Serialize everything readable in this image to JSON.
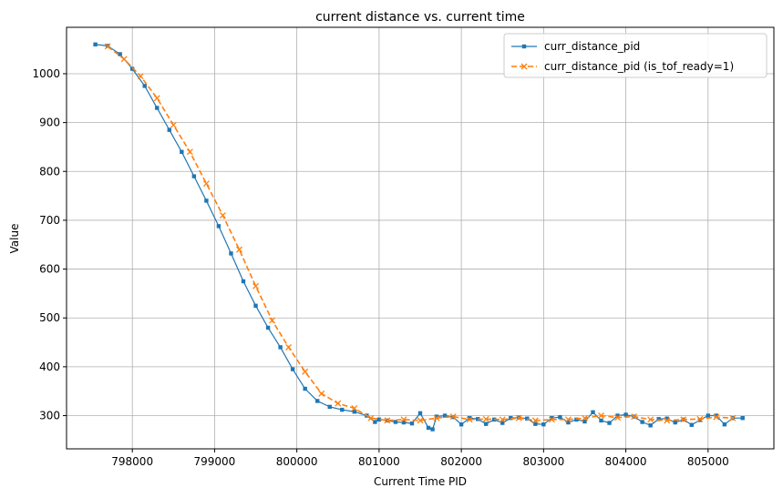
{
  "chart_data": {
    "type": "line",
    "title": "current distance vs. current time",
    "xlabel": "Current Time PID",
    "ylabel": "Value",
    "xlim": [
      797200,
      805800
    ],
    "ylim": [
      232,
      1095
    ],
    "xticks": [
      798000,
      799000,
      800000,
      801000,
      802000,
      803000,
      804000,
      805000
    ],
    "yticks": [
      300,
      400,
      500,
      600,
      700,
      800,
      900,
      1000
    ],
    "grid": true,
    "legend": "top-right",
    "series": [
      {
        "name": "curr_distance_pid",
        "color": "#1f77b4",
        "marker": "square",
        "linestyle": "solid",
        "x": [
          797550,
          797700,
          797850,
          798000,
          798150,
          798300,
          798450,
          798600,
          798750,
          798900,
          799050,
          799200,
          799350,
          799500,
          799650,
          799800,
          799950,
          800100,
          800250,
          800400,
          800550,
          800700,
          800850,
          800950,
          801000,
          801100,
          801200,
          801300,
          801400,
          801500,
          801600,
          801650,
          801700,
          801800,
          801900,
          802000,
          802100,
          802200,
          802300,
          802400,
          802500,
          802600,
          802700,
          802800,
          802900,
          803000,
          803100,
          803200,
          803300,
          803400,
          803500,
          803600,
          803700,
          803800,
          803900,
          804000,
          804100,
          804200,
          804300,
          804400,
          804500,
          804600,
          804700,
          804800,
          804900,
          805000,
          805100,
          805200,
          805300,
          805420
        ],
        "y": [
          1060,
          1057,
          1040,
          1010,
          975,
          930,
          885,
          840,
          790,
          740,
          688,
          632,
          575,
          525,
          480,
          440,
          395,
          355,
          330,
          318,
          312,
          308,
          300,
          287,
          292,
          290,
          287,
          286,
          284,
          305,
          275,
          272,
          298,
          300,
          297,
          282,
          295,
          293,
          283,
          292,
          285,
          295,
          296,
          294,
          283,
          282,
          295,
          297,
          286,
          292,
          288,
          307,
          290,
          285,
          300,
          302,
          298,
          287,
          280,
          293,
          294,
          286,
          292,
          281,
          291,
          300,
          300,
          282,
          295,
          295
        ]
      },
      {
        "name": "curr_distance_pid (is_tof_ready=1)",
        "color": "#ff7f0e",
        "marker": "x",
        "linestyle": "dashed",
        "x": [
          797700,
          797900,
          798100,
          798300,
          798500,
          798700,
          798900,
          799100,
          799300,
          799500,
          799700,
          799900,
          800100,
          800300,
          800500,
          800700,
          800900,
          801100,
          801300,
          801500,
          801700,
          801900,
          802100,
          802300,
          802500,
          802700,
          802900,
          803100,
          803300,
          803500,
          803700,
          803900,
          804100,
          804300,
          804500,
          804700,
          804900,
          805100,
          805300
        ],
        "y": [
          1056,
          1030,
          995,
          950,
          895,
          840,
          775,
          710,
          640,
          565,
          495,
          440,
          390,
          345,
          325,
          315,
          295,
          290,
          292,
          290,
          295,
          298,
          292,
          293,
          292,
          295,
          290,
          292,
          292,
          295,
          300,
          296,
          298,
          292,
          290,
          292,
          293,
          297,
          295
        ]
      }
    ]
  }
}
